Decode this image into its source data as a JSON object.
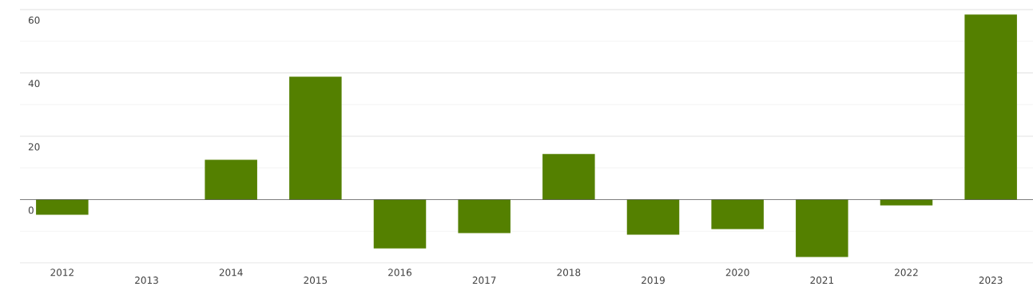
{
  "chart_data": {
    "type": "bar",
    "categories": [
      "2012",
      "2013",
      "2014",
      "2015",
      "2016",
      "2017",
      "2018",
      "2019",
      "2020",
      "2021",
      "2022",
      "2023"
    ],
    "values": [
      -4.8,
      0,
      12.6,
      38.8,
      -15.4,
      -10.6,
      14.4,
      -11.1,
      -9.3,
      -18.1,
      -1.8,
      58.4
    ],
    "color": "#548000",
    "ylim": [
      -20,
      60
    ],
    "yticks": [
      {
        "value": -20,
        "label": null
      },
      0,
      20,
      40,
      60
    ],
    "grid": "y"
  }
}
